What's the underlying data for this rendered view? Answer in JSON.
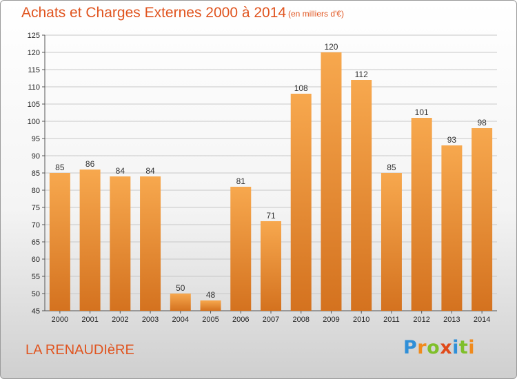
{
  "title": "Achats et Charges Externes 2000 à 2014",
  "unit_note": "(en milliers d'€)",
  "commune": "LA RENAUDIèRE",
  "logo": {
    "text": "Proxiti",
    "letters": [
      {
        "ch": "P",
        "color": "#2f8fd8"
      },
      {
        "ch": "r",
        "color": "#f08a1c"
      },
      {
        "ch": "o",
        "color": "#7fbf2a"
      },
      {
        "ch": "x",
        "color": "#e04a1a"
      },
      {
        "ch": "i",
        "color": "#2f8fd8"
      },
      {
        "ch": "t",
        "color": "#7fbf2a"
      },
      {
        "ch": "i",
        "color": "#f08a1c"
      }
    ]
  },
  "colors": {
    "bar_top": "#f7a84e",
    "bar_bottom": "#d4721f",
    "title": "#e0541f",
    "grid": "#c8c8c8"
  },
  "chart_data": {
    "type": "bar",
    "title": "Achats et Charges Externes 2000 à 2014",
    "categories": [
      "2000",
      "2001",
      "2002",
      "2003",
      "2004",
      "2005",
      "2006",
      "2007",
      "2008",
      "2009",
      "2010",
      "2011",
      "2012",
      "2013",
      "2014"
    ],
    "values": [
      85,
      86,
      84,
      84,
      50,
      48,
      81,
      71,
      108,
      120,
      112,
      85,
      101,
      93,
      98
    ],
    "ylim": [
      45,
      125
    ],
    "yticks": [
      45,
      50,
      55,
      60,
      65,
      70,
      75,
      80,
      85,
      90,
      95,
      100,
      105,
      110,
      115,
      120,
      125
    ],
    "grid": true,
    "xlabel": "",
    "ylabel": ""
  }
}
